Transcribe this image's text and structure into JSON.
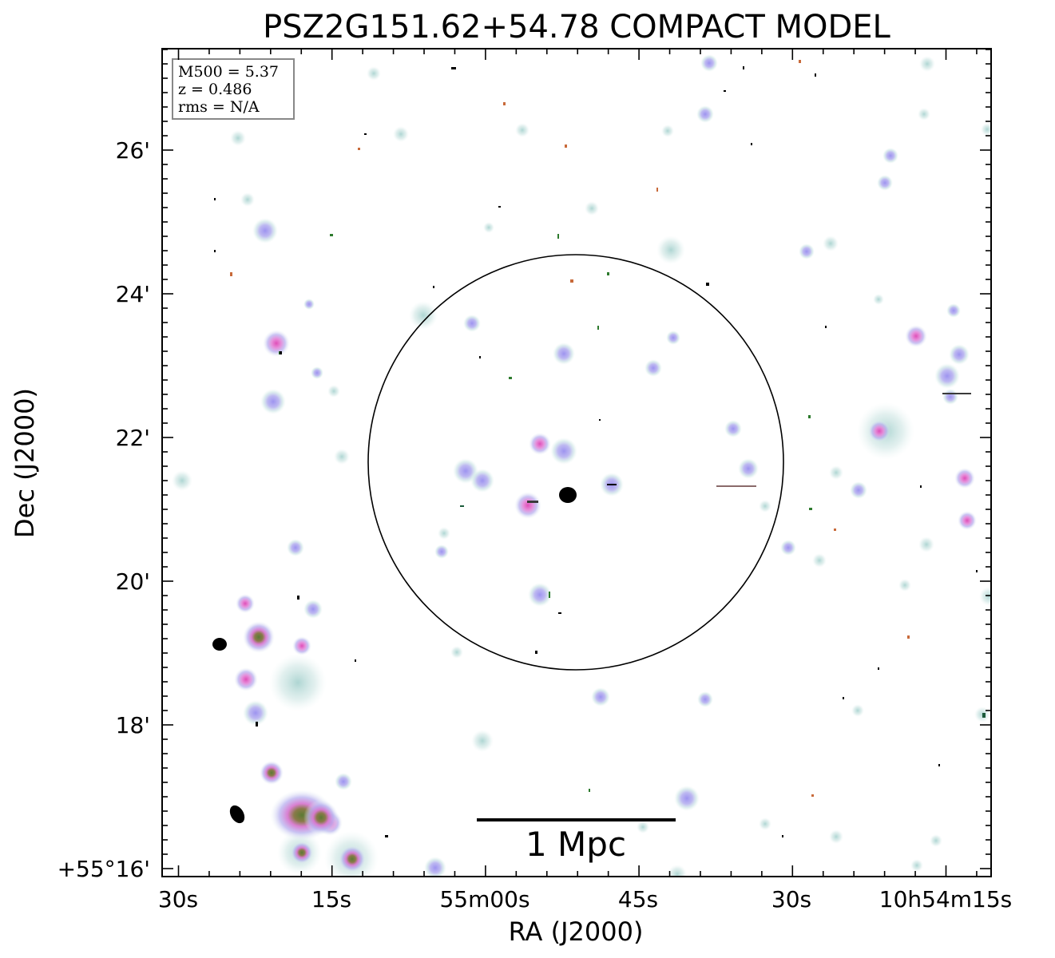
{
  "figure": {
    "title": "PSZ2G151.62+54.78 COMPACT MODEL",
    "xlabel": "RA (J2000)",
    "ylabel": "Dec (J2000)",
    "info_box": {
      "line1": "M500 = 5.37",
      "line2": "z = 0.486",
      "line3": "rms = N/A"
    },
    "scale_bar_label": "1 Mpc",
    "ra_ticks": [
      "30s",
      "15s",
      "55m00s",
      "45s",
      "30s",
      "10h54m15s"
    ],
    "dec_ticks": [
      "+55°16'",
      "18'",
      "20'",
      "22'",
      "24'",
      "26'"
    ],
    "colors": {
      "halo": "#cfe6e4",
      "lavender": "#b2acef",
      "pink": "#e58ad9",
      "core": "#7b8a4c",
      "dark_blob": "#000000",
      "circle": "#000000"
    }
  }
}
